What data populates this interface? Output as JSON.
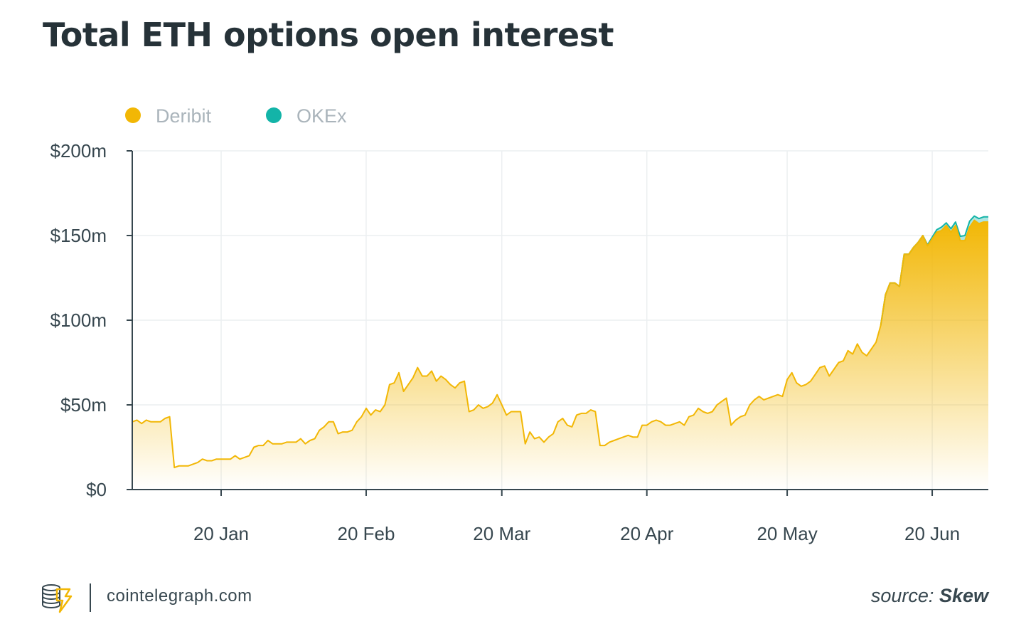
{
  "header": {
    "title": "Total ETH options open interest"
  },
  "chart_data": {
    "type": "area",
    "stacked": true,
    "title": "Total ETH options open interest",
    "xlabel": "",
    "ylabel": "",
    "x_range_day_of_year": [
      0,
      183
    ],
    "ylim": [
      0,
      200
    ],
    "y_ticks": [
      0,
      50,
      100,
      150,
      200
    ],
    "y_tick_labels": [
      "$0",
      "$50m",
      "$100m",
      "$150m",
      "$200m"
    ],
    "x_ticks_day_of_year": [
      19,
      50,
      79,
      110,
      140,
      171
    ],
    "x_tick_labels": [
      "20 Jan",
      "20 Feb",
      "20 Mar",
      "20 Apr",
      "20 May",
      "20 Jun"
    ],
    "grid": true,
    "legend": "top-left",
    "colors": {
      "Deribit": "#f2b705",
      "OKEx": "#13b4a8"
    },
    "series": [
      {
        "name": "Deribit",
        "x": [
          0,
          1,
          2,
          3,
          4,
          5,
          6,
          7,
          8,
          9,
          10,
          11,
          12,
          13,
          14,
          15,
          16,
          17,
          18,
          19,
          20,
          21,
          22,
          23,
          24,
          25,
          26,
          27,
          28,
          29,
          30,
          31,
          32,
          33,
          34,
          35,
          36,
          37,
          38,
          39,
          40,
          41,
          42,
          43,
          44,
          45,
          46,
          47,
          48,
          49,
          50,
          51,
          52,
          53,
          54,
          55,
          56,
          57,
          58,
          59,
          60,
          61,
          62,
          63,
          64,
          65,
          66,
          67,
          68,
          69,
          70,
          71,
          72,
          73,
          74,
          75,
          76,
          77,
          78,
          79,
          80,
          81,
          82,
          83,
          84,
          85,
          86,
          87,
          88,
          89,
          90,
          91,
          92,
          93,
          94,
          95,
          96,
          97,
          98,
          99,
          100,
          101,
          102,
          103,
          104,
          105,
          106,
          107,
          108,
          109,
          110,
          111,
          112,
          113,
          114,
          115,
          116,
          117,
          118,
          119,
          120,
          121,
          122,
          123,
          124,
          125,
          126,
          127,
          128,
          129,
          130,
          131,
          132,
          133,
          134,
          135,
          136,
          137,
          138,
          139,
          140,
          141,
          142,
          143,
          144,
          145,
          146,
          147,
          148,
          149,
          150,
          151,
          152,
          153,
          154,
          155,
          156,
          157,
          158,
          159,
          160,
          161,
          162,
          163,
          164,
          165,
          166,
          167,
          168,
          169,
          170,
          171,
          172,
          173,
          174,
          175,
          176,
          177,
          178,
          179,
          180,
          181,
          182,
          183
        ],
        "values": [
          40,
          41,
          39,
          41,
          40,
          40,
          40,
          42,
          43,
          13,
          14,
          14,
          14,
          15,
          16,
          18,
          17,
          17,
          18,
          18,
          18,
          18,
          20,
          18,
          19,
          20,
          25,
          26,
          26,
          29,
          27,
          27,
          27,
          28,
          28,
          28,
          30,
          27,
          29,
          30,
          35,
          37,
          40,
          40,
          33,
          34,
          34,
          35,
          40,
          43,
          48,
          44,
          47,
          46,
          50,
          62,
          63,
          69,
          58,
          62,
          66,
          72,
          67,
          67,
          70,
          64,
          67,
          65,
          62,
          60,
          63,
          64,
          46,
          47,
          50,
          48,
          49,
          51,
          56,
          50,
          44,
          46,
          46,
          46,
          27,
          34,
          30,
          31,
          28,
          31,
          33,
          40,
          42,
          38,
          37,
          44,
          45,
          45,
          47,
          46,
          26,
          26,
          28,
          29,
          30,
          31,
          32,
          31,
          31,
          38,
          38,
          40,
          41,
          40,
          38,
          38,
          39,
          40,
          38,
          43,
          44,
          48,
          46,
          45,
          46,
          50,
          52,
          54,
          38,
          41,
          43,
          44,
          50,
          53,
          55,
          53,
          54,
          55,
          56,
          55,
          65,
          69,
          63,
          61,
          62,
          64,
          68,
          72,
          73,
          67,
          71,
          75,
          76,
          82,
          80,
          86,
          81,
          79,
          83,
          87,
          97,
          115,
          122,
          122,
          120,
          139,
          139,
          143,
          146,
          150,
          144,
          148,
          152,
          153,
          156,
          152,
          156,
          147,
          147,
          155,
          159,
          157,
          158,
          158
        ]
      },
      {
        "name": "OKEx",
        "x": [
          160,
          161,
          162,
          163,
          164,
          165,
          166,
          167,
          168,
          169,
          170,
          171,
          172,
          173,
          174,
          175,
          176,
          177,
          178,
          179,
          180,
          181,
          182,
          183
        ],
        "values": [
          0,
          0,
          0,
          0,
          0,
          0,
          0,
          0,
          0,
          0,
          0.5,
          1,
          1.5,
          2,
          1.5,
          2,
          2,
          2.5,
          3,
          3.5,
          2.5,
          3,
          3,
          3
        ]
      }
    ]
  },
  "footer": {
    "site": "cointelegraph.com",
    "source_prefix": "source:",
    "source_name": "Skew"
  }
}
